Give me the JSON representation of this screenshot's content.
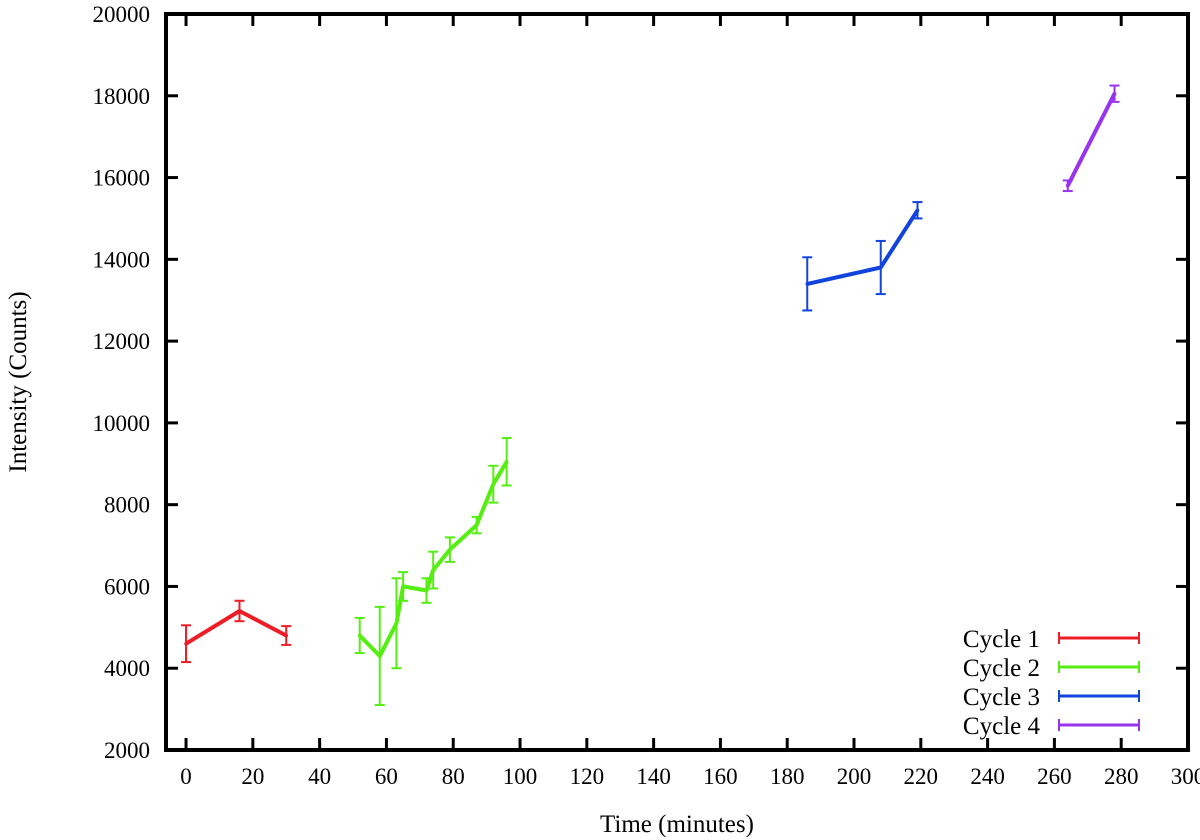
{
  "chart_data": {
    "type": "line",
    "title": "",
    "xlabel": "Time (minutes)",
    "ylabel": "Intensity (Counts)",
    "xlim": [
      -6,
      300
    ],
    "ylim": [
      2000,
      20000
    ],
    "xticks": [
      0,
      20,
      40,
      60,
      80,
      100,
      120,
      140,
      160,
      180,
      200,
      220,
      240,
      260,
      280,
      300
    ],
    "yticks": [
      2000,
      4000,
      6000,
      8000,
      10000,
      12000,
      14000,
      16000,
      18000,
      20000
    ],
    "grid": false,
    "error_bars": true,
    "legend": {
      "position": "bottom-right"
    },
    "series": [
      {
        "name": "Cycle 1",
        "color": "#ee1c25",
        "x": [
          0,
          16,
          30
        ],
        "y": [
          4600,
          5400,
          4800
        ],
        "err": [
          450,
          250,
          230
        ]
      },
      {
        "name": "Cycle 2",
        "color": "#55ee11",
        "x": [
          52,
          58,
          63,
          65,
          72,
          74,
          79,
          87,
          92,
          96
        ],
        "y": [
          4800,
          4300,
          5100,
          6000,
          5900,
          6400,
          6900,
          7500,
          8500,
          9050
        ],
        "err": [
          430,
          1200,
          1100,
          350,
          300,
          450,
          300,
          200,
          450,
          580
        ]
      },
      {
        "name": "Cycle 3",
        "color": "#1144dd",
        "x": [
          186,
          208,
          219
        ],
        "y": [
          13400,
          13800,
          15200
        ],
        "err": [
          650,
          650,
          200
        ]
      },
      {
        "name": "Cycle 4",
        "color": "#9933ee",
        "x": [
          264,
          278
        ],
        "y": [
          15800,
          18050
        ],
        "err": [
          130,
          200
        ]
      }
    ]
  }
}
